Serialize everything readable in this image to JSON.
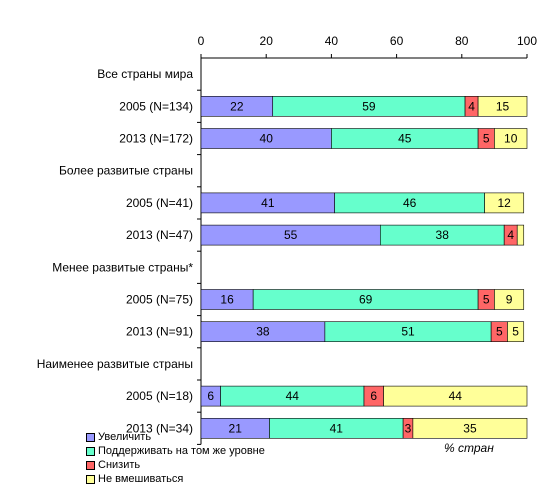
{
  "chart_data": {
    "type": "bar",
    "orientation": "horizontal",
    "stacked": true,
    "xlim": [
      0,
      100
    ],
    "xticks": [
      "0",
      "20",
      "40",
      "60",
      "80",
      "100"
    ],
    "unit_label": "% стран",
    "legend_position": "bottom-left",
    "grid": false,
    "series": [
      {
        "name": "Увеличить",
        "color": "#9999ff"
      },
      {
        "name": "Поддерживать на том же уровне",
        "color": "#66ffcc"
      },
      {
        "name": "Снизить",
        "color": "#ff6666"
      },
      {
        "name": "Не вмешиваться",
        "color": "#ffff99"
      }
    ],
    "rows": [
      {
        "kind": "group",
        "label": "Все страны мира"
      },
      {
        "kind": "bar",
        "label": "2005 (N=134)",
        "values": [
          22,
          59,
          4,
          15
        ],
        "labels": [
          "22",
          "59",
          "4",
          "15"
        ]
      },
      {
        "kind": "bar",
        "label": "2013 (N=172)",
        "values": [
          40,
          45,
          5,
          10
        ],
        "labels": [
          "40",
          "45",
          "5",
          "10"
        ]
      },
      {
        "kind": "group",
        "label": "Более развитые страны"
      },
      {
        "kind": "bar",
        "label": "2005 (N=41)",
        "values": [
          41,
          46,
          0,
          12
        ],
        "labels": [
          "41",
          "46",
          "",
          "12"
        ]
      },
      {
        "kind": "bar",
        "label": "2013 (N=47)",
        "values": [
          55,
          38,
          4,
          2
        ],
        "labels": [
          "55",
          "38",
          "4",
          ""
        ]
      },
      {
        "kind": "group",
        "label": "Менее развитые страны*"
      },
      {
        "kind": "bar",
        "label": "2005 (N=75)",
        "values": [
          16,
          69,
          5,
          9
        ],
        "labels": [
          "16",
          "69",
          "5",
          "9"
        ]
      },
      {
        "kind": "bar",
        "label": "2013 (N=91)",
        "values": [
          38,
          51,
          5,
          5
        ],
        "labels": [
          "38",
          "51",
          "5",
          "5"
        ]
      },
      {
        "kind": "group",
        "label": "Наименее развитые страны"
      },
      {
        "kind": "bar",
        "label": "2005 (N=18)",
        "values": [
          6,
          44,
          6,
          44
        ],
        "labels": [
          "6",
          "44",
          "6",
          "44"
        ]
      },
      {
        "kind": "bar",
        "label": "2013 (N=34)",
        "values": [
          21,
          41,
          3,
          35
        ],
        "labels": [
          "21",
          "41",
          "3",
          "35"
        ]
      }
    ]
  }
}
